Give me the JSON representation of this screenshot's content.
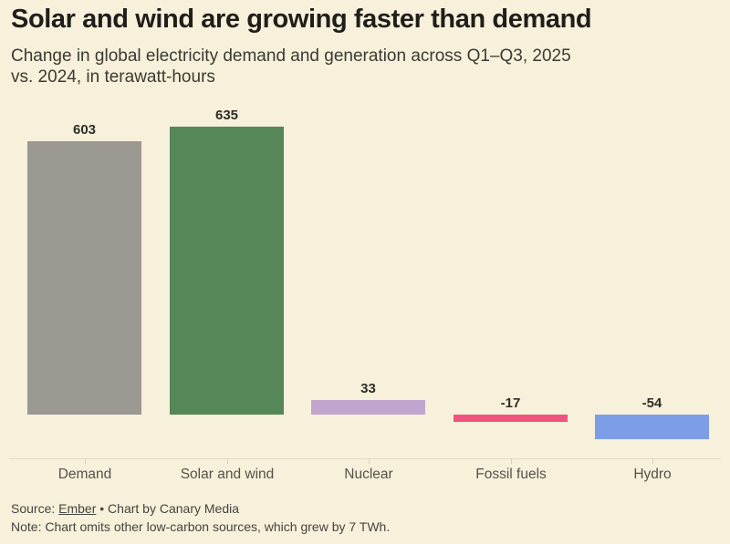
{
  "header": {
    "title": "Solar and wind are growing faster than demand",
    "subtitle_lines": [
      "Change in global electricity demand and generation across Q1–Q3, 2025",
      "vs. 2024, in terawatt-hours"
    ]
  },
  "chart_data": {
    "type": "bar",
    "title": "Solar and wind are growing faster than demand",
    "subtitle": "Change in global electricity demand and generation across Q1–Q3, 2025 vs. 2024, in terawatt-hours",
    "unit": "TWh",
    "categories": [
      "Demand",
      "Solar and wind",
      "Nuclear",
      "Fossil fuels",
      "Hydro"
    ],
    "values": [
      603,
      635,
      33,
      -17,
      -54
    ],
    "value_labels": [
      "603",
      "635",
      "33",
      "-17",
      "-54"
    ],
    "colors": [
      "#9c9892",
      "#568759",
      "#c2a5ce",
      "#f0537f",
      "#7d9ee6"
    ],
    "xlabel": "",
    "ylabel": "",
    "ylim": [
      -54,
      635
    ],
    "grid": false,
    "legend": "none",
    "baseline": 0
  },
  "footer": {
    "source_prefix": "Source: ",
    "source_link": "Ember",
    "source_suffix": " • Chart by Canary Media",
    "note": "Note: Chart omits other low-carbon sources, which grew by 7 TWh."
  },
  "theme": {
    "background": "#f7f0da",
    "title_color": "#1f1e1a",
    "subtitle_color": "#3b3a33",
    "axis_color": "#e3ddc7",
    "label_color": "#54524b",
    "value_color": "#2e2d28",
    "footer_color": "#454440"
  }
}
